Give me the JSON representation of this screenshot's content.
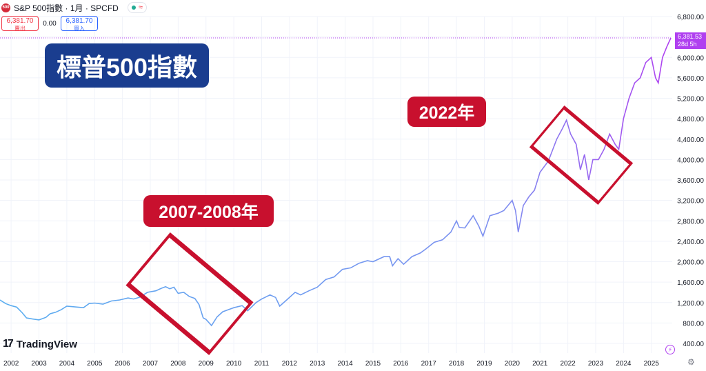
{
  "header": {
    "logo_text": "500",
    "symbol_title": "S&P 500指數 · 1月 · SPCFD",
    "status_wave": "≈",
    "sell_price": "6,381.70",
    "sell_label": "賣出",
    "spread": "0.00",
    "buy_price": "6,381.70",
    "buy_label": "買入"
  },
  "annotations": {
    "title": "標普500指數",
    "label_2022": "2022年",
    "label_2007": "2007-2008年"
  },
  "brand": {
    "mark": "17",
    "name": "TradingView"
  },
  "price_tag": {
    "price": "6,381.53",
    "countdown": "28d 5h"
  },
  "colors": {
    "line_start": "#5aaef0",
    "line_end": "#b040f0",
    "annotation_red": "#c8102e",
    "title_blue": "#1a3d8f"
  },
  "chart_data": {
    "type": "line",
    "title": "",
    "xlabel": "",
    "ylabel": "",
    "x_ticks": [
      "2002",
      "2003",
      "2004",
      "2005",
      "2006",
      "2007",
      "2008",
      "2009",
      "2010",
      "2011",
      "2012",
      "2013",
      "2014",
      "2015",
      "2016",
      "2017",
      "2018",
      "2019",
      "2020",
      "2021",
      "2022",
      "2023",
      "2024",
      "2025"
    ],
    "y_ticks": [
      "6,800.00",
      "6,400.00",
      "6,000.00",
      "5,600.00",
      "5,200.00",
      "4,800.00",
      "4,400.00",
      "4,000.00",
      "3,600.00",
      "3,200.00",
      "2,800.00",
      "2,400.00",
      "2,000.00",
      "1,600.00",
      "1,200.00",
      "800.00",
      "400.00"
    ],
    "ylim": [
      400,
      6800
    ],
    "xlim": [
      2001.6,
      2025.75
    ],
    "grid": true,
    "current_price": 6381.53,
    "series": [
      {
        "x": [
          2001.6,
          2001.8,
          2002.0,
          2002.2,
          2002.4,
          2002.55,
          2002.75,
          2003.0,
          2003.25,
          2003.4,
          2003.6,
          2003.8,
          2004.0,
          2004.2,
          2004.4,
          2004.6,
          2004.8,
          2005.0,
          2005.3,
          2005.6,
          2005.9,
          2006.2,
          2006.4,
          2006.6,
          2006.9,
          2007.2,
          2007.4,
          2007.55,
          2007.7,
          2007.85,
          2008.0,
          2008.2,
          2008.4,
          2008.6,
          2008.75,
          2008.9,
          2009.0,
          2009.2,
          2009.4,
          2009.6,
          2009.8,
          2010.0,
          2010.3,
          2010.5,
          2010.8,
          2011.0,
          2011.3,
          2011.5,
          2011.65,
          2011.9,
          2012.2,
          2012.4,
          2012.7,
          2013.0,
          2013.3,
          2013.6,
          2013.9,
          2014.2,
          2014.5,
          2014.8,
          2015.0,
          2015.4,
          2015.6,
          2015.7,
          2015.9,
          2016.1,
          2016.4,
          2016.7,
          2016.9,
          2017.2,
          2017.5,
          2017.8,
          2018.0,
          2018.1,
          2018.3,
          2018.6,
          2018.8,
          2018.95,
          2019.2,
          2019.5,
          2019.7,
          2020.0,
          2020.12,
          2020.22,
          2020.4,
          2020.6,
          2020.8,
          2021.0,
          2021.3,
          2021.6,
          2021.8,
          2021.95,
          2022.1,
          2022.3,
          2022.45,
          2022.6,
          2022.75,
          2022.9,
          2023.1,
          2023.3,
          2023.5,
          2023.7,
          2023.83,
          2024.0,
          2024.2,
          2024.4,
          2024.6,
          2024.8,
          2025.0,
          2025.15,
          2025.25,
          2025.4,
          2025.55,
          2025.7
        ],
        "y": [
          1250,
          1180,
          1140,
          1110,
          1000,
          900,
          880,
          860,
          910,
          980,
          1010,
          1060,
          1130,
          1120,
          1110,
          1100,
          1180,
          1190,
          1170,
          1230,
          1250,
          1290,
          1270,
          1300,
          1400,
          1430,
          1480,
          1510,
          1470,
          1500,
          1380,
          1400,
          1320,
          1280,
          1160,
          900,
          870,
          750,
          920,
          1020,
          1060,
          1100,
          1140,
          1040,
          1200,
          1270,
          1350,
          1300,
          1130,
          1250,
          1400,
          1350,
          1430,
          1500,
          1650,
          1700,
          1850,
          1880,
          1970,
          2020,
          2000,
          2100,
          2100,
          1920,
          2060,
          1950,
          2100,
          2170,
          2250,
          2380,
          2430,
          2580,
          2800,
          2670,
          2660,
          2900,
          2700,
          2500,
          2900,
          2950,
          3000,
          3200,
          3000,
          2580,
          3100,
          3270,
          3400,
          3750,
          3970,
          4400,
          4600,
          4770,
          4500,
          4300,
          3800,
          4100,
          3600,
          4000,
          4000,
          4200,
          4500,
          4300,
          4200,
          4800,
          5200,
          5500,
          5600,
          5900,
          6000,
          5600,
          5500,
          6000,
          6200,
          6381.53
        ]
      }
    ]
  }
}
